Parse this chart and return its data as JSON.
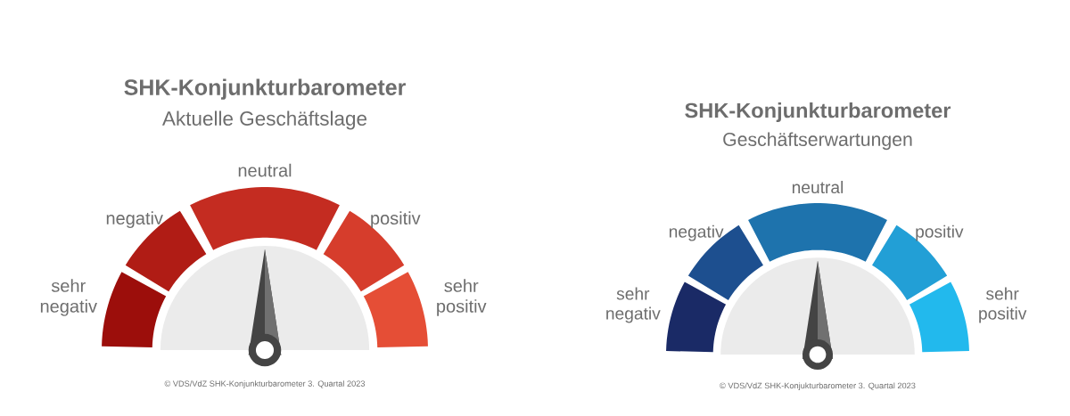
{
  "chart_data": [
    {
      "type": "donut",
      "title": "SHK-Konjunkturbarometer",
      "subtitle": "Aktuelle Geschäftslage",
      "categories": [
        "sehr negativ",
        "negativ",
        "neutral",
        "positiv",
        "sehr positiv"
      ],
      "values": [
        16.67,
        16.67,
        33.32,
        16.67,
        16.67
      ],
      "colors": [
        "#9c0e0b",
        "#b01c15",
        "#c42c21",
        "#d63d2c",
        "#e54e36"
      ],
      "needle": "neutral",
      "annotations": [
        "© VDS/VdZ SHK-Konjunkturbarometer 3. Quartal 2023"
      ]
    },
    {
      "type": "donut",
      "title": "SHK-Konjunkturbarometer",
      "subtitle": "Geschäftserwartungen",
      "categories": [
        "sehr negativ",
        "negativ",
        "neutral",
        "positiv",
        "sehr positiv"
      ],
      "values": [
        16.67,
        16.67,
        33.32,
        16.67,
        16.67
      ],
      "colors": [
        "#1a2a66",
        "#1d4f8f",
        "#1e73ad",
        "#229fd6",
        "#22b9ed"
      ],
      "needle": "neutral",
      "annotations": [
        "© VDS/VdZ SHK-Konjukturbarometer 3. Quartal 2023"
      ]
    }
  ]
}
